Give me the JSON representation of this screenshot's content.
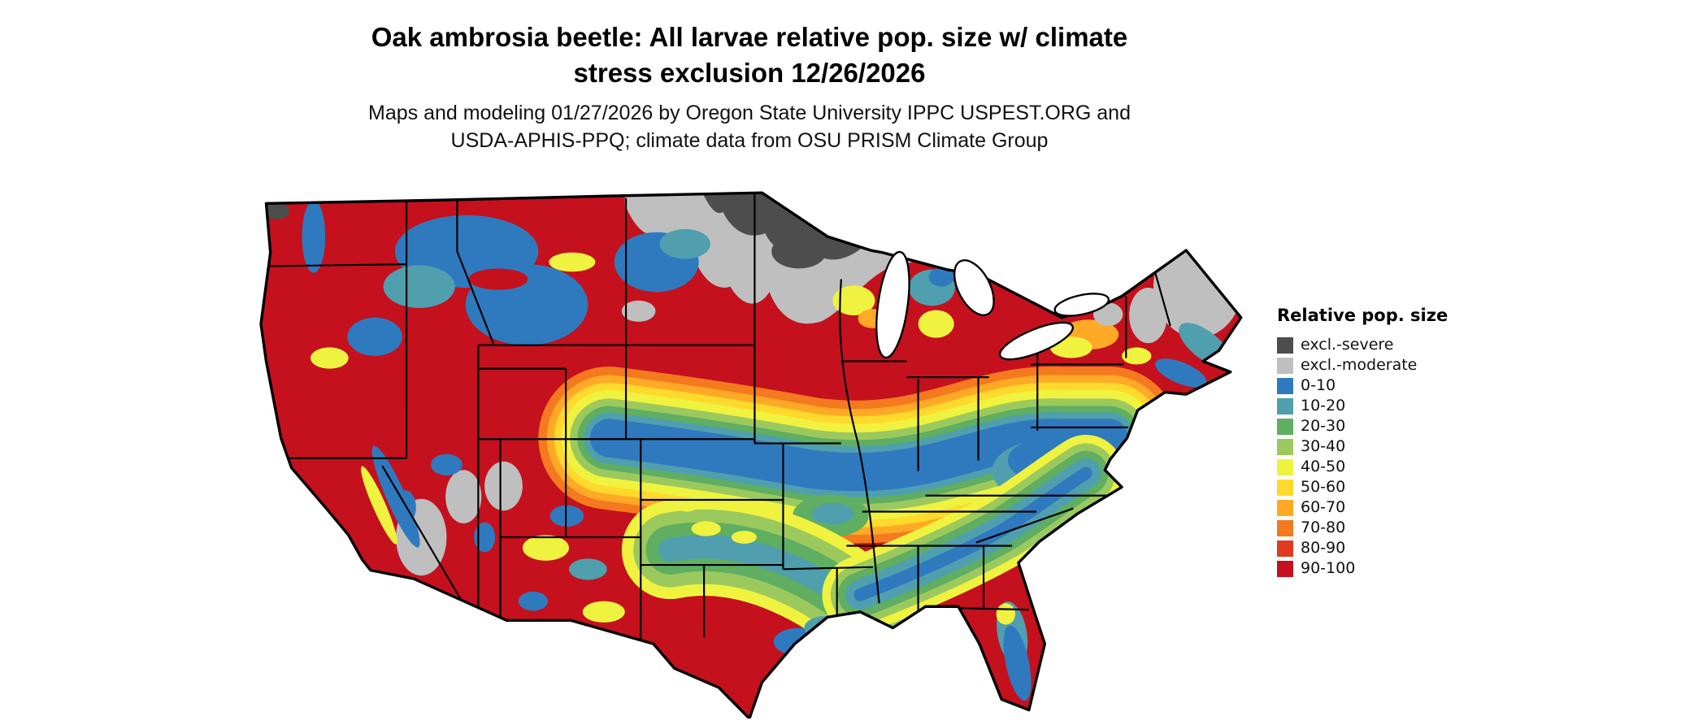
{
  "figure": {
    "title_line1": "Oak ambrosia beetle: All larvae relative pop. size w/ climate",
    "title_line2": "stress exclusion 12/26/2026",
    "subtitle_line1": "Maps and modeling 01/27/2026 by Oregon State University IPPC USPEST.ORG and",
    "subtitle_line2": "USDA-APHIS-PPQ; climate data from OSU PRISM Climate Group"
  },
  "map": {
    "region": "contiguous-united-states",
    "background": "#ffffff",
    "border_color": "#000000"
  },
  "legend": {
    "title": "Relative pop. size",
    "items": [
      {
        "label": "excl.-severe",
        "color": "#4d4d4d"
      },
      {
        "label": "excl.-moderate",
        "color": "#bfbfbf"
      },
      {
        "label": "0-10",
        "color": "#2f7abf"
      },
      {
        "label": "10-20",
        "color": "#4f9fae"
      },
      {
        "label": "20-30",
        "color": "#5fae61"
      },
      {
        "label": "30-40",
        "color": "#9cc95e"
      },
      {
        "label": "40-50",
        "color": "#eff33f"
      },
      {
        "label": "50-60",
        "color": "#ffd92b"
      },
      {
        "label": "60-70",
        "color": "#ffa927"
      },
      {
        "label": "70-80",
        "color": "#f4791f"
      },
      {
        "label": "80-90",
        "color": "#e03b22"
      },
      {
        "label": "90-100",
        "color": "#c4111d"
      }
    ]
  }
}
